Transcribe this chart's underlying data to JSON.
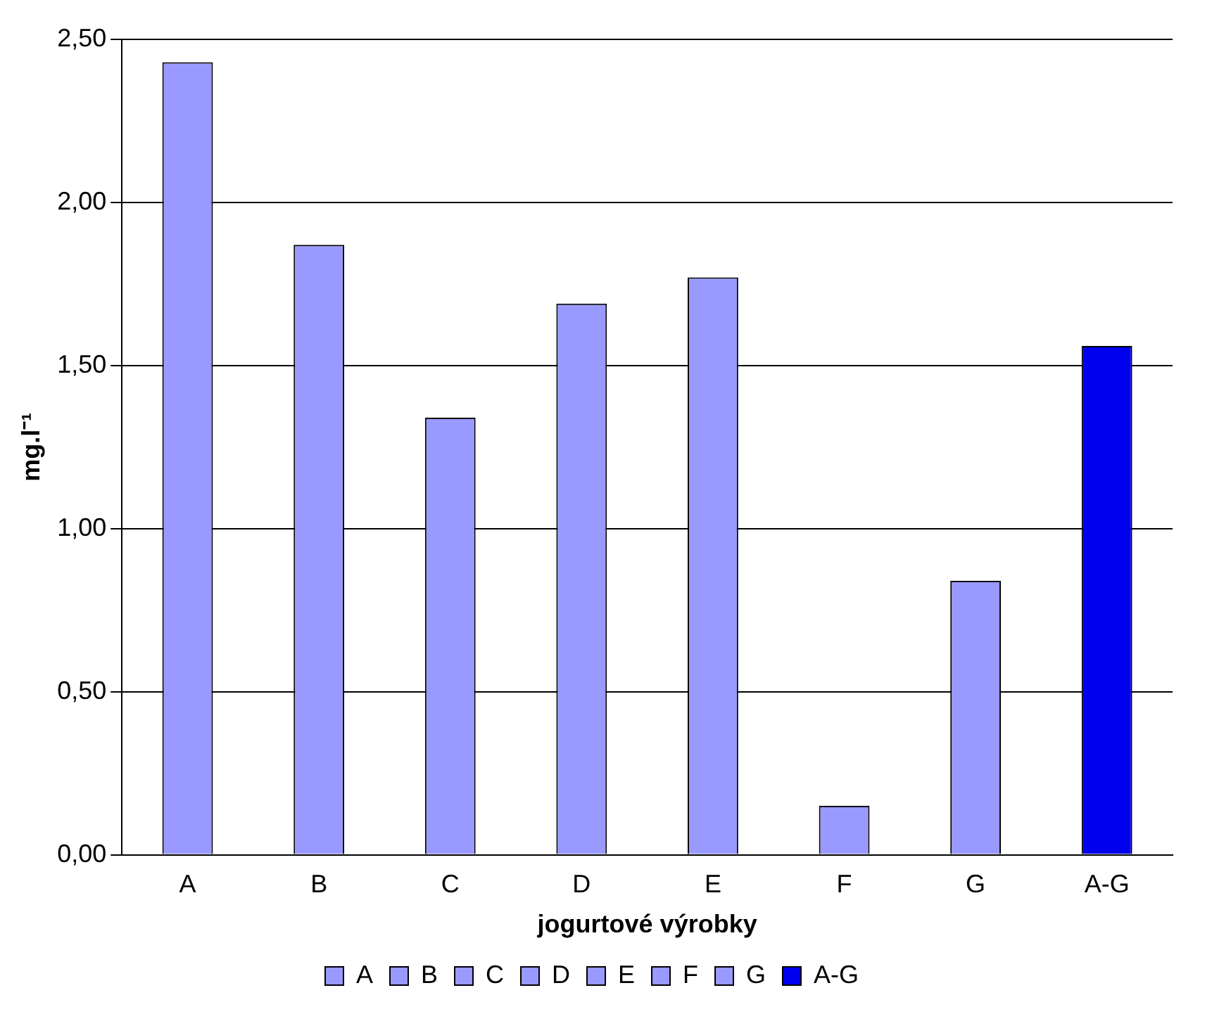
{
  "chart_data": {
    "type": "bar",
    "xlabel": "jogurtové výrobky",
    "ylabel": "mg.l⁻¹",
    "categories": [
      "A",
      "B",
      "C",
      "D",
      "E",
      "F",
      "G",
      "A-G"
    ],
    "series": [
      {
        "name": "A",
        "color": "#9999ff",
        "values": [
          2.43,
          null,
          null,
          null,
          null,
          null,
          null,
          null
        ]
      },
      {
        "name": "B",
        "color": "#9999ff",
        "values": [
          null,
          1.87,
          null,
          null,
          null,
          null,
          null,
          null
        ]
      },
      {
        "name": "C",
        "color": "#9999ff",
        "values": [
          null,
          null,
          1.34,
          null,
          null,
          null,
          null,
          null
        ]
      },
      {
        "name": "D",
        "color": "#9999ff",
        "values": [
          null,
          null,
          null,
          1.69,
          null,
          null,
          null,
          null
        ]
      },
      {
        "name": "E",
        "color": "#9999ff",
        "values": [
          null,
          null,
          null,
          null,
          1.77,
          null,
          null,
          null
        ]
      },
      {
        "name": "F",
        "color": "#9999ff",
        "values": [
          null,
          null,
          null,
          null,
          null,
          0.15,
          null,
          null
        ]
      },
      {
        "name": "G",
        "color": "#9999ff",
        "values": [
          null,
          null,
          null,
          null,
          null,
          null,
          0.84,
          null
        ]
      },
      {
        "name": "A-G",
        "color": "#0000ee",
        "values": [
          null,
          null,
          null,
          null,
          null,
          null,
          null,
          1.56
        ]
      }
    ],
    "ylim": [
      0,
      2.5
    ],
    "yticks": [
      {
        "value": 0,
        "label": "0,00"
      },
      {
        "value": 0.5,
        "label": "0,50"
      },
      {
        "value": 1,
        "label": "1,00"
      },
      {
        "value": 1.5,
        "label": "1,50"
      },
      {
        "value": 2,
        "label": "2,00"
      },
      {
        "value": 2.5,
        "label": "2,50"
      }
    ],
    "grid": "y",
    "legend": "bottom"
  }
}
